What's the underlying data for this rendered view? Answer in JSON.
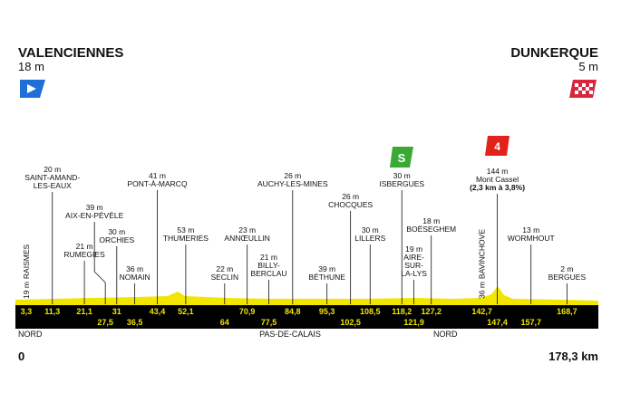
{
  "header": {
    "start": {
      "name": "VALENCIENNES",
      "alt": "18 m"
    },
    "finish": {
      "name": "DUNKERQUE",
      "alt": "5 m"
    }
  },
  "places": [
    {
      "name": [
        "RAISMES"
      ],
      "alt": "19 m",
      "km": "3,3"
    },
    {
      "name": [
        "SAINT-AMAND-",
        "LES-EAUX"
      ],
      "alt": "20 m",
      "km": "11,3"
    },
    {
      "name": [
        "RUMEGIES"
      ],
      "alt": "21 m",
      "km": "21,1"
    },
    {
      "name": [
        "AIX-EN-PÉVÈLE"
      ],
      "alt": "39 m",
      "km": "27,5"
    },
    {
      "name": [
        "ORCHIES"
      ],
      "alt": "30 m",
      "km": "31"
    },
    {
      "name": [
        "NOMAIN"
      ],
      "alt": "36 m",
      "km": "36,5"
    },
    {
      "name": [
        "PONT-À-MARCQ"
      ],
      "alt": "41 m",
      "km": "43,4"
    },
    {
      "name": [
        "THUMERIES"
      ],
      "alt": "53 m",
      "km": "52,1"
    },
    {
      "name": [
        "SECLIN"
      ],
      "alt": "22 m",
      "km": "64"
    },
    {
      "name": [
        "ANNŒULLIN"
      ],
      "alt": "23 m",
      "km": "70,9"
    },
    {
      "name": [
        "BILLY-",
        "BERCLAU"
      ],
      "alt": "21 m",
      "km": "77,5"
    },
    {
      "name": [
        "AUCHY-LES-MINES"
      ],
      "alt": "26 m",
      "km": "84,8"
    },
    {
      "name": [
        "BÉTHUNE"
      ],
      "alt": "39 m",
      "km": "95,3"
    },
    {
      "name": [
        "CHOCQUES"
      ],
      "alt": "26 m",
      "km": "102,5"
    },
    {
      "name": [
        "LILLERS"
      ],
      "alt": "30 m",
      "km": "108,5"
    },
    {
      "name": [
        "ISBERGUES"
      ],
      "alt": "30 m",
      "km": "118,2"
    },
    {
      "name": [
        "AIRE-",
        "SUR-",
        "LA-LYS"
      ],
      "alt": "19 m",
      "km": "121,9"
    },
    {
      "name": [
        "BOËSEGHEM"
      ],
      "alt": "18 m",
      "km": "127,2"
    },
    {
      "name": [
        "BAVINCHOVE"
      ],
      "alt": "36 m",
      "km": "142,7"
    },
    {
      "name": [
        "Mont Cassel"
      ],
      "alt": "144 m",
      "km": "147,4",
      "climb": "(2,3 km à 3,8%)",
      "category": "4"
    },
    {
      "name": [
        "WORMHOUT"
      ],
      "alt": "13 m",
      "km": "157,7"
    },
    {
      "name": [
        "BERGUES"
      ],
      "alt": "2 m",
      "km": "168,7"
    }
  ],
  "regions": [
    "NORD",
    "PAS-DE-CALAIS",
    "NORD"
  ],
  "distance": {
    "start": "0",
    "end": "178,3 km"
  }
}
